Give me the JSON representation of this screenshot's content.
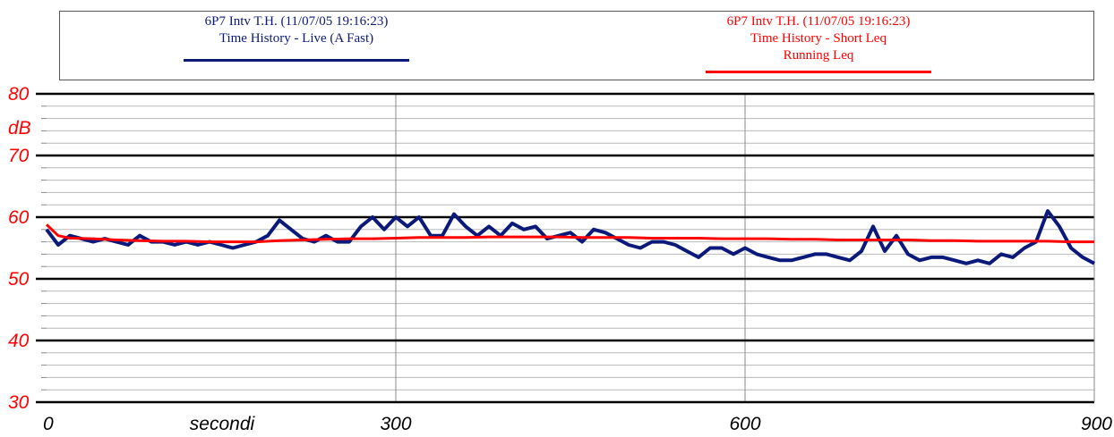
{
  "legend": [
    {
      "lines": [
        "6P7 Intv T.H. (11/07/05 19:16:23)",
        "Time History - Live (A Fast)"
      ],
      "color": "#0b1a7a"
    },
    {
      "lines": [
        "6P7 Intv T.H. (11/07/05 19:16:23)",
        "Time History - Short Leq",
        "Running Leq"
      ],
      "color": "#ff0000"
    }
  ],
  "chart_data": {
    "type": "line",
    "xlabel": "secondi",
    "ylabel": "dB",
    "xlim": [
      0,
      900
    ],
    "ylim": [
      30,
      80
    ],
    "x_ticks": [
      0,
      300,
      600,
      900
    ],
    "y_ticks": [
      30,
      40,
      50,
      60,
      70,
      80
    ],
    "grid": true,
    "series": [
      {
        "name": "6P7 Intv T.H. (11/07/05 19:16:23) Time History - Live (A Fast)",
        "color": "#0b1a7a",
        "x": [
          0,
          10,
          20,
          30,
          40,
          50,
          60,
          70,
          80,
          90,
          100,
          110,
          120,
          130,
          140,
          150,
          160,
          170,
          180,
          190,
          200,
          210,
          220,
          230,
          240,
          250,
          260,
          270,
          280,
          290,
          300,
          310,
          320,
          330,
          340,
          350,
          360,
          370,
          380,
          390,
          400,
          410,
          420,
          430,
          440,
          450,
          460,
          470,
          480,
          490,
          500,
          510,
          520,
          530,
          540,
          550,
          560,
          570,
          580,
          590,
          600,
          610,
          620,
          630,
          640,
          650,
          660,
          670,
          680,
          690,
          700,
          710,
          720,
          730,
          740,
          750,
          760,
          770,
          780,
          790,
          800,
          810,
          820,
          830,
          840,
          850,
          860,
          870,
          880,
          890,
          900
        ],
        "values": [
          58,
          55.5,
          57,
          56.5,
          56,
          56.5,
          56,
          55.5,
          57,
          56,
          56,
          55.5,
          56,
          55.5,
          56,
          55.5,
          55,
          55.5,
          56,
          57,
          59.5,
          58,
          56.5,
          56,
          57,
          56,
          56,
          58.5,
          60,
          58,
          60,
          58.5,
          60,
          57,
          57,
          60.5,
          58.5,
          57,
          58.5,
          57,
          59,
          58,
          58.5,
          56.5,
          57,
          57.5,
          56,
          58,
          57.5,
          56.5,
          55.5,
          55,
          56,
          56,
          55.5,
          54.5,
          53.5,
          55,
          55,
          54,
          55,
          54,
          53.5,
          53,
          53,
          53.5,
          54,
          54,
          53.5,
          53,
          54.5,
          58.5,
          54.5,
          57,
          54,
          53,
          53.5,
          53.5,
          53,
          52.5,
          53,
          52.5,
          54,
          53.5,
          55,
          56,
          61,
          58.5,
          55,
          53.5,
          52.5
        ]
      },
      {
        "name": "6P7 Intv T.H. (11/07/05 19:16:23) Time History - Short Leq Running Leq",
        "color": "#ff0000",
        "x": [
          0,
          10,
          20,
          40,
          60,
          80,
          100,
          120,
          140,
          160,
          180,
          200,
          220,
          240,
          260,
          280,
          300,
          320,
          340,
          360,
          380,
          400,
          420,
          440,
          460,
          480,
          500,
          520,
          540,
          560,
          580,
          600,
          620,
          640,
          660,
          680,
          700,
          720,
          740,
          760,
          780,
          800,
          820,
          840,
          860,
          880,
          900
        ],
        "values": [
          58.8,
          57,
          56.6,
          56.5,
          56.3,
          56.2,
          56.1,
          56.1,
          56,
          56,
          56,
          56.2,
          56.3,
          56.4,
          56.5,
          56.5,
          56.6,
          56.7,
          56.7,
          56.7,
          56.8,
          56.8,
          56.8,
          56.8,
          56.7,
          56.7,
          56.7,
          56.6,
          56.6,
          56.6,
          56.5,
          56.5,
          56.5,
          56.4,
          56.4,
          56.3,
          56.3,
          56.3,
          56.3,
          56.2,
          56.2,
          56.1,
          56.1,
          56.1,
          56.1,
          56,
          56
        ]
      }
    ]
  }
}
